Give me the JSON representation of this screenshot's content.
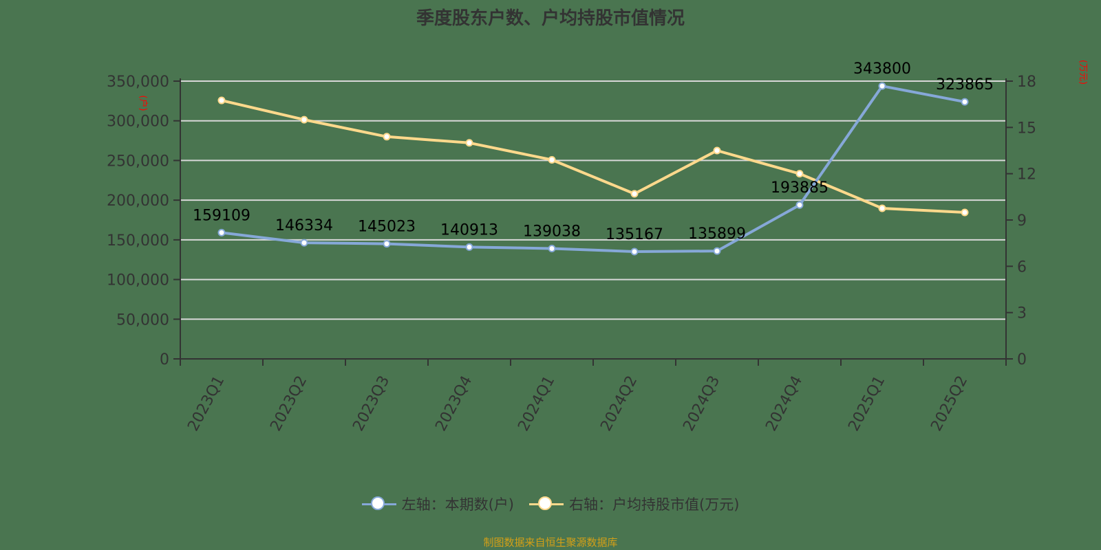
{
  "title": "季度股东户数、户均持股市值情况",
  "source": "制图数据来自恒生聚源数据库",
  "left_axis_unit_label": "(户)",
  "right_axis_unit_label": "(万元)",
  "legend": [
    {
      "label": "左轴：本期数(户)",
      "color": "#86a8d8"
    },
    {
      "label": "右轴：户均持股市值(万元)",
      "color": "#ffd98c"
    }
  ],
  "colors": {
    "background": "#4a7550",
    "series_left": "#86a8d8",
    "series_right": "#ffd98c",
    "grid": "#d8d8d8",
    "axis": "#333333",
    "source_text": "#d4a017",
    "unit_label": "#ff0000"
  },
  "chart_data": {
    "type": "line",
    "title": "季度股东户数、户均持股市值情况",
    "categories": [
      "2023Q1",
      "2023Q2",
      "2023Q3",
      "2023Q4",
      "2024Q1",
      "2024Q2",
      "2024Q3",
      "2024Q4",
      "2025Q1",
      "2025Q2"
    ],
    "series": [
      {
        "name": "左轴：本期数(户)",
        "axis": "left",
        "values": [
          159109,
          146334,
          145023,
          140913,
          139038,
          135167,
          135899,
          193885,
          343800,
          323865
        ],
        "data_labels": true
      },
      {
        "name": "右轴：户均持股市值(万元)",
        "axis": "right",
        "values": [
          16.75,
          15.5,
          14.4,
          14.0,
          12.9,
          10.7,
          13.5,
          12.0,
          9.76,
          9.49
        ],
        "data_labels": false
      }
    ],
    "y_left": {
      "label": "(户)",
      "ticks": [
        "0",
        "50,000",
        "100,000",
        "150,000",
        "200,000",
        "250,000",
        "300,000",
        "350,000"
      ],
      "range": [
        0,
        350000
      ]
    },
    "y_right": {
      "label": "(万元)",
      "ticks": [
        "0",
        "3",
        "6",
        "9",
        "12",
        "15",
        "18"
      ],
      "range": [
        0,
        18
      ]
    },
    "xlabel": "",
    "grid": true,
    "legend_position": "bottom"
  }
}
